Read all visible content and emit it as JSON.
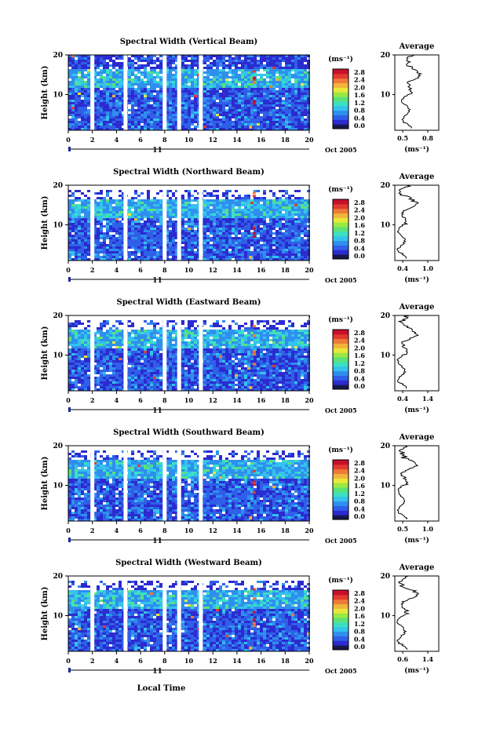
{
  "chart_data": {
    "type": "heatmap",
    "time_axis": {
      "ticks": [
        "0",
        "2",
        "4",
        "6",
        "8",
        "10",
        "12",
        "14",
        "16",
        "18",
        "20"
      ],
      "day_label": "11",
      "date_label": "Oct 2005",
      "xlabel": "Local Time"
    },
    "height_axis": {
      "ylabel": "Height (km)",
      "ticks": [
        "10",
        "20"
      ]
    },
    "colorbar": {
      "unit": "(ms⁻¹)",
      "ticks": [
        "0.0",
        "0.4",
        "0.8",
        "1.2",
        "1.6",
        "2.0",
        "2.4",
        "2.8"
      ],
      "colors": [
        "#18184a",
        "#2b2bd0",
        "#2f5fe8",
        "#2f8fee",
        "#34c2ee",
        "#3ce0c0",
        "#5ae27a",
        "#9ae844",
        "#e8e83a",
        "#f2b43a",
        "#ee7a38",
        "#e23a30",
        "#c8102a"
      ]
    },
    "panels": [
      {
        "title": "Spectral Width (Vertical Beam)",
        "avg_title": "Average",
        "avg_unit": "(ms⁻¹)",
        "avg_xticks": [
          "0.5",
          "0.8"
        ],
        "avg_yticks": [
          "10",
          "20"
        ],
        "avg_xlim": [
          0.4,
          0.9
        ],
        "avg_profile_peak_km": 14.5
      },
      {
        "title": "Spectral Width (Northward Beam)",
        "avg_title": "Average",
        "avg_unit": "(ms⁻¹)",
        "avg_xticks": [
          "0.4",
          "1.0"
        ],
        "avg_yticks": [
          "10",
          "20"
        ],
        "avg_xlim": [
          0.2,
          1.2
        ],
        "avg_profile_peak_km": 15.0
      },
      {
        "title": "Spectral Width (Eastward Beam)",
        "avg_title": "Average",
        "avg_unit": "(ms⁻¹)",
        "avg_xticks": [
          "0.4",
          "1.4"
        ],
        "avg_yticks": [
          "10",
          "20"
        ],
        "avg_xlim": [
          0.3,
          1.5
        ],
        "avg_profile_peak_km": 15.0
      },
      {
        "title": "Spectral Width (Southward Beam)",
        "avg_title": "Average",
        "avg_unit": "(ms⁻¹)",
        "avg_xticks": [
          "0.5",
          "1.0"
        ],
        "avg_yticks": [
          "10",
          "20"
        ],
        "avg_xlim": [
          0.4,
          1.2
        ],
        "avg_profile_peak_km": 15.0
      },
      {
        "title": "Spectral Width (Westward Beam)",
        "avg_title": "Average",
        "avg_unit": "(ms⁻¹)",
        "avg_xticks": [
          "0.6",
          "1.4"
        ],
        "avg_yticks": [
          "10",
          "20"
        ],
        "avg_xlim": [
          0.4,
          1.6
        ],
        "avg_profile_peak_km": 15.0
      }
    ]
  }
}
